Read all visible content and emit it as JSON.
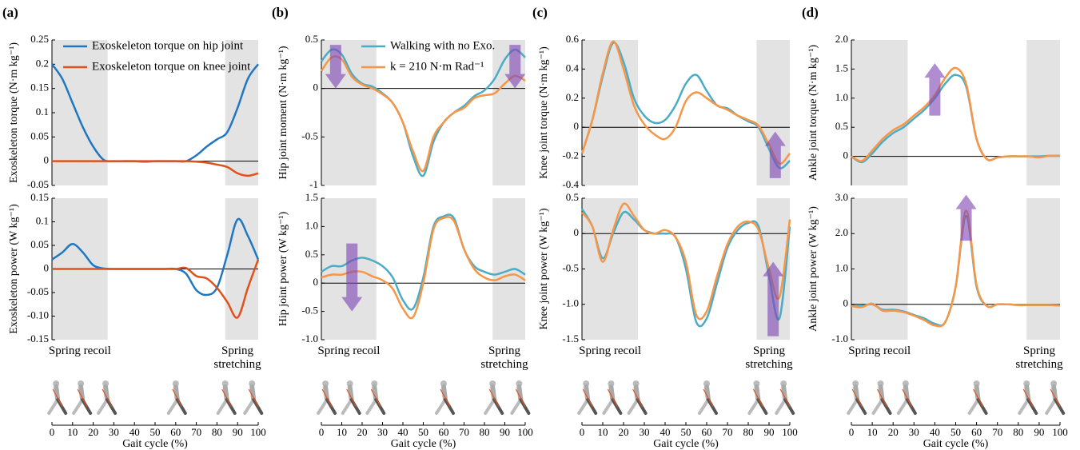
{
  "chart_data": [
    {
      "type": "line",
      "panel_label": "(a)",
      "ylabel": "Exoskeleton torque (N·m kg⁻¹)",
      "xlim": [
        0,
        100
      ],
      "ylim": [
        -0.05,
        0.25
      ],
      "yticks": [
        -0.05,
        0,
        0.05,
        0.1,
        0.15,
        0.2,
        0.25
      ],
      "shade": [
        [
          0,
          27
        ],
        [
          84,
          100
        ]
      ],
      "legend": "top-left",
      "x": [
        0,
        5,
        10,
        15,
        20,
        25,
        30,
        35,
        40,
        45,
        50,
        55,
        60,
        65,
        70,
        75,
        80,
        85,
        90,
        95,
        100
      ],
      "series": [
        {
          "name": "Exoskeleton torque on hip joint",
          "color": "#1f77c4",
          "values": [
            0.2,
            0.17,
            0.12,
            0.07,
            0.03,
            0.003,
            0,
            0,
            0,
            -0.001,
            0,
            0,
            0,
            0,
            0.012,
            0.03,
            0.045,
            0.06,
            0.11,
            0.17,
            0.2
          ]
        },
        {
          "name": "Exoskeleton torque on knee joint",
          "color": "#e0521c",
          "values": [
            0,
            0,
            0,
            0,
            0,
            0,
            0,
            0,
            0,
            0,
            0,
            0,
            0,
            0,
            -0.001,
            -0.003,
            -0.007,
            -0.012,
            -0.025,
            -0.03,
            -0.025
          ]
        }
      ]
    },
    {
      "type": "line",
      "ylabel": "Exoskeleton power (W kg⁻¹)",
      "xlim": [
        0,
        100
      ],
      "ylim": [
        -0.15,
        0.15
      ],
      "yticks": [
        -0.15,
        {
          "value": -0.1,
          "label": "-0.10"
        },
        -0.05,
        0,
        0.05,
        0.1,
        0.15
      ],
      "shade": [
        [
          0,
          27
        ],
        [
          84,
          100
        ]
      ],
      "annotations": [
        "Spring recoil",
        "Spring stretching"
      ],
      "xticks": [
        0,
        10,
        20,
        30,
        40,
        50,
        60,
        70,
        80,
        90,
        100
      ],
      "xlabel": "Gait cycle (%)",
      "x": [
        0,
        5,
        10,
        15,
        20,
        25,
        30,
        35,
        40,
        45,
        50,
        55,
        60,
        65,
        70,
        75,
        80,
        85,
        90,
        95,
        100
      ],
      "series": [
        {
          "color": "#1f77c4",
          "values": [
            0.02,
            0.035,
            0.053,
            0.035,
            0.008,
            0.001,
            0,
            0,
            0,
            0,
            0,
            0,
            0,
            -0.01,
            -0.045,
            -0.055,
            -0.04,
            0.03,
            0.105,
            0.07,
            0.02
          ]
        },
        {
          "color": "#e0521c",
          "values": [
            0,
            0,
            0,
            0,
            0,
            0,
            0,
            0,
            0,
            0,
            0,
            0,
            0,
            0.002,
            -0.015,
            -0.02,
            -0.04,
            -0.07,
            -0.103,
            -0.04,
            0.02
          ]
        }
      ]
    },
    {
      "type": "line",
      "panel_label": "(b)",
      "ylabel": "Hip joint moment (N·m kg⁻¹)",
      "xlim": [
        0,
        100
      ],
      "ylim": [
        -1,
        0.5
      ],
      "yticks": [
        -1,
        -0.5,
        0,
        0.5
      ],
      "shade": [
        [
          0,
          27
        ],
        [
          84,
          100
        ]
      ],
      "legend": "top-right",
      "x": [
        0,
        5,
        10,
        15,
        20,
        25,
        30,
        35,
        40,
        45,
        50,
        55,
        60,
        65,
        70,
        75,
        80,
        85,
        90,
        95,
        100
      ],
      "series": [
        {
          "name": "Walking with no Exo.",
          "color": "#4bacc6",
          "values": [
            0.28,
            0.4,
            0.35,
            0.15,
            0.05,
            0.02,
            -0.05,
            -0.15,
            -0.35,
            -0.7,
            -0.9,
            -0.55,
            -0.35,
            -0.25,
            -0.18,
            -0.08,
            -0.02,
            0.1,
            0.3,
            0.4,
            0.32
          ]
        },
        {
          "name": "k = 210 N·m Rad⁻¹",
          "color": "#f79646",
          "values": [
            0.18,
            0.32,
            0.3,
            0.12,
            0.04,
            0,
            -0.06,
            -0.15,
            -0.35,
            -0.65,
            -0.85,
            -0.5,
            -0.35,
            -0.25,
            -0.2,
            -0.1,
            -0.07,
            -0.05,
            0.05,
            0.13,
            0.08
          ]
        }
      ],
      "arrows": [
        {
          "x": 7,
          "from": 0.45,
          "to": 0
        },
        {
          "x": 95,
          "from": 0.45,
          "to": 0
        }
      ]
    },
    {
      "type": "line",
      "ylabel": "Hip joint power (W kg⁻¹)",
      "xlim": [
        0,
        100
      ],
      "ylim": [
        -1,
        1.5
      ],
      "yticks": [
        {
          "value": -1,
          "label": "-1.0"
        },
        -0.5,
        0,
        0.5,
        {
          "value": 1,
          "label": "1.0"
        },
        1.5
      ],
      "shade": [
        [
          0,
          27
        ],
        [
          84,
          100
        ]
      ],
      "annotations": [
        "Spring recoil",
        "Spring stretching"
      ],
      "xticks": [
        0,
        10,
        20,
        30,
        40,
        50,
        60,
        70,
        80,
        90,
        100
      ],
      "xlabel": "Gait cycle (%)",
      "x": [
        0,
        5,
        10,
        15,
        20,
        25,
        30,
        35,
        40,
        45,
        50,
        55,
        60,
        65,
        70,
        75,
        80,
        85,
        90,
        95,
        100
      ],
      "series": [
        {
          "color": "#4bacc6",
          "values": [
            0.2,
            0.3,
            0.3,
            0.4,
            0.45,
            0.4,
            0.3,
            0.1,
            -0.3,
            -0.45,
            0.1,
            1.0,
            1.18,
            1.15,
            0.6,
            0.3,
            0.2,
            0.15,
            0.2,
            0.25,
            0.15
          ]
        },
        {
          "color": "#f79646",
          "values": [
            0.1,
            0.15,
            0.15,
            0.2,
            0.2,
            0.12,
            0.05,
            -0.1,
            -0.45,
            -0.6,
            0,
            0.95,
            1.15,
            1.1,
            0.6,
            0.25,
            0.1,
            0.05,
            0.12,
            0.15,
            0.05
          ]
        }
      ],
      "arrows": [
        {
          "x": 15,
          "from": 0.7,
          "to": -0.5
        }
      ]
    },
    {
      "type": "line",
      "panel_label": "(c)",
      "ylabel": "Knee joint torque (N·m kg⁻¹)",
      "xlim": [
        0,
        100
      ],
      "ylim": [
        -0.4,
        0.6
      ],
      "yticks": [
        -0.4,
        -0.2,
        0,
        0.2,
        0.4,
        0.6
      ],
      "shade": [
        [
          0,
          27
        ],
        [
          84,
          100
        ]
      ],
      "x": [
        0,
        5,
        10,
        15,
        20,
        25,
        30,
        35,
        40,
        45,
        50,
        55,
        60,
        65,
        70,
        75,
        80,
        85,
        90,
        95,
        100
      ],
      "series": [
        {
          "color": "#4bacc6",
          "values": [
            -0.18,
            0.05,
            0.35,
            0.58,
            0.45,
            0.2,
            0.08,
            0.03,
            0.05,
            0.15,
            0.3,
            0.36,
            0.25,
            0.15,
            0.13,
            0.08,
            0.04,
            0,
            -0.15,
            -0.28,
            -0.23
          ]
        },
        {
          "color": "#f79646",
          "values": [
            -0.18,
            0.05,
            0.37,
            0.59,
            0.4,
            0.15,
            0.02,
            -0.05,
            -0.08,
            0,
            0.18,
            0.24,
            0.2,
            0.15,
            0.12,
            0.08,
            0.05,
            0.01,
            -0.12,
            -0.25,
            -0.18
          ]
        }
      ],
      "arrows": [
        {
          "x": 93,
          "from": -0.35,
          "to": -0.03
        }
      ]
    },
    {
      "type": "line",
      "ylabel": "Knee joint power (W kg⁻¹)",
      "xlim": [
        0,
        100
      ],
      "ylim": [
        -1.5,
        0.5
      ],
      "yticks": [
        -1.5,
        {
          "value": -1,
          "label": "-1.0"
        },
        -0.5,
        0,
        0.5
      ],
      "shade": [
        [
          0,
          27
        ],
        [
          84,
          100
        ]
      ],
      "annotations": [
        "Spring recoil",
        "Spring stretching"
      ],
      "xticks": [
        0,
        10,
        20,
        30,
        40,
        50,
        60,
        70,
        80,
        90,
        100
      ],
      "xlabel": "Gait cycle (%)",
      "x": [
        0,
        5,
        10,
        15,
        20,
        25,
        30,
        35,
        40,
        45,
        50,
        55,
        60,
        65,
        70,
        75,
        80,
        85,
        90,
        95,
        100
      ],
      "series": [
        {
          "color": "#4bacc6",
          "values": [
            0.35,
            0.1,
            -0.35,
            0,
            0.3,
            0.2,
            0.05,
            0,
            0,
            -0.05,
            -0.5,
            -1.25,
            -1.2,
            -0.7,
            -0.2,
            0.05,
            0.15,
            0.1,
            -0.6,
            -1.2,
            0.1
          ]
        },
        {
          "color": "#f79646",
          "values": [
            0.3,
            0.1,
            -0.4,
            0.05,
            0.42,
            0.25,
            0.05,
            0,
            0.05,
            -0.05,
            -0.4,
            -1.15,
            -1.1,
            -0.6,
            -0.15,
            0.1,
            0.17,
            0.05,
            -0.5,
            -0.9,
            0.2
          ]
        }
      ],
      "arrows": [
        {
          "x": 92,
          "from": -1.45,
          "to": -0.4
        }
      ]
    },
    {
      "type": "line",
      "panel_label": "(d)",
      "ylabel": "Ankle joint torque (N·m kg⁻¹)",
      "xlim": [
        0,
        100
      ],
      "ylim": [
        -0.5,
        2
      ],
      "yticks": [
        0,
        0.5,
        {
          "value": 1,
          "label": "1.0"
        },
        1.5,
        {
          "value": 2,
          "label": "2.0"
        }
      ],
      "shade": [
        [
          0,
          27
        ],
        [
          84,
          100
        ]
      ],
      "x": [
        0,
        5,
        10,
        15,
        20,
        25,
        30,
        35,
        40,
        45,
        50,
        55,
        60,
        65,
        70,
        75,
        80,
        85,
        90,
        95,
        100
      ],
      "series": [
        {
          "color": "#4bacc6",
          "values": [
            0,
            -0.1,
            0.05,
            0.25,
            0.4,
            0.5,
            0.65,
            0.8,
            1,
            1.25,
            1.4,
            1.2,
            0.3,
            -0.05,
            -0.02,
            0,
            0,
            0,
            0,
            0.01,
            0.01
          ]
        },
        {
          "color": "#f79646",
          "values": [
            0,
            -0.08,
            0.1,
            0.3,
            0.45,
            0.55,
            0.7,
            0.85,
            1.05,
            1.35,
            1.52,
            1.25,
            0.3,
            -0.05,
            -0.02,
            0,
            0,
            0,
            -0.02,
            0.01,
            0.01
          ]
        }
      ],
      "arrows": [
        {
          "x": 40,
          "from": 0.7,
          "to": 1.6
        }
      ]
    },
    {
      "type": "line",
      "ylabel": "Ankle joint power (W kg⁻¹)",
      "xlim": [
        0,
        100
      ],
      "ylim": [
        -1,
        3
      ],
      "yticks": [
        {
          "value": -1,
          "label": "-1.0"
        },
        0,
        {
          "value": 1,
          "label": "1.0"
        },
        {
          "value": 2,
          "label": "2.0"
        },
        {
          "value": 3,
          "label": "3.0"
        }
      ],
      "shade": [
        [
          0,
          27
        ],
        [
          84,
          100
        ]
      ],
      "annotations": [
        "Spring recoil",
        "Spring stretching"
      ],
      "xticks": [
        0,
        10,
        20,
        30,
        40,
        50,
        60,
        70,
        80,
        90,
        100
      ],
      "xlabel": "Gait cycle (%)",
      "x": [
        0,
        5,
        10,
        15,
        20,
        25,
        30,
        35,
        40,
        45,
        50,
        55,
        60,
        65,
        70,
        75,
        80,
        85,
        90,
        95,
        100
      ],
      "series": [
        {
          "color": "#4bacc6",
          "values": [
            -0.05,
            -0.05,
            0,
            -0.15,
            -0.15,
            -0.2,
            -0.3,
            -0.4,
            -0.55,
            -0.5,
            0.5,
            2.5,
            0.5,
            -0.05,
            0,
            0,
            -0.02,
            -0.02,
            -0.02,
            -0.02,
            -0.03
          ]
        },
        {
          "color": "#f79646",
          "values": [
            -0.05,
            -0.08,
            0.02,
            -0.18,
            -0.18,
            -0.22,
            -0.32,
            -0.45,
            -0.6,
            -0.5,
            0.5,
            2.65,
            0.55,
            -0.05,
            0,
            0,
            -0.02,
            -0.02,
            -0.02,
            -0.02,
            -0.03
          ]
        }
      ],
      "arrows": [
        {
          "x": 55,
          "from": 1.8,
          "to": 3.1
        }
      ]
    }
  ]
}
